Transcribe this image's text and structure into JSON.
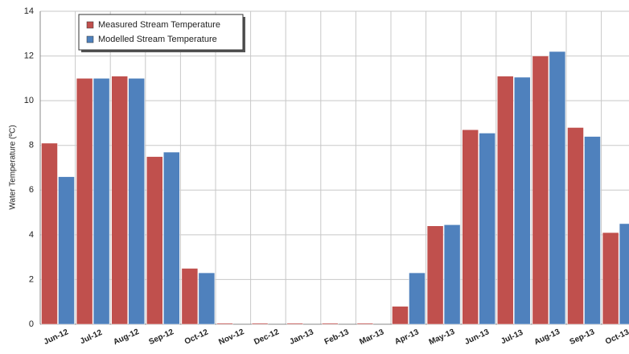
{
  "chart_data": {
    "type": "bar",
    "y_label": "Water Temperature (ºC)",
    "categories": [
      "Jun-12",
      "Jul-12",
      "Aug-12",
      "Sep-12",
      "Oct-12",
      "Nov-12",
      "Dec-12",
      "Jan-13",
      "Feb-13",
      "Mar-13",
      "Apr-13",
      "May-13",
      "Jun-13",
      "Jul-13",
      "Aug-13",
      "Sep-13",
      "Oct-13"
    ],
    "series": [
      {
        "name": "Measured Stream Temperature",
        "color": "#c0504d",
        "values": [
          8.1,
          11.0,
          11.1,
          7.5,
          2.5,
          0.05,
          0.05,
          0.05,
          0.05,
          0.05,
          0.8,
          4.4,
          8.7,
          11.1,
          12.0,
          8.8,
          4.1
        ]
      },
      {
        "name": "Modelled Stream Temperature",
        "color": "#4f81bd",
        "values": [
          6.6,
          11.0,
          11.0,
          7.7,
          2.3,
          null,
          null,
          null,
          null,
          null,
          2.3,
          4.45,
          8.55,
          11.05,
          12.2,
          8.4,
          4.5
        ]
      }
    ],
    "ylim": [
      0,
      14
    ],
    "yticks": [
      0,
      2,
      4,
      6,
      8,
      10,
      12,
      14
    ],
    "grid": true,
    "legend": "upper-left"
  }
}
